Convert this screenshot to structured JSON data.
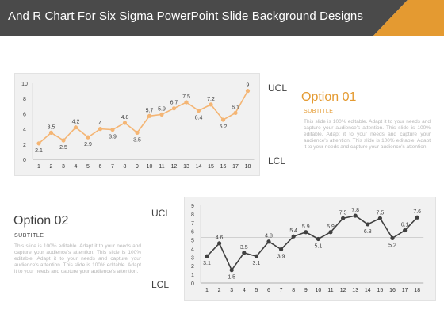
{
  "header": {
    "title": "And R Chart For Six Sigma PowerPoint Slide Background Designs",
    "background_color": "#4a4a4a",
    "accent_color": "#e49a31"
  },
  "chart_data": [
    {
      "type": "line",
      "x": [
        1,
        2,
        3,
        4,
        5,
        6,
        7,
        8,
        9,
        10,
        11,
        12,
        13,
        14,
        15,
        16,
        17,
        18
      ],
      "series": [
        {
          "values": [
            2.1,
            3.5,
            2.5,
            4.2,
            2.9,
            4,
            3.9,
            4.8,
            3.5,
            5.7,
            5.9,
            6.7,
            7.5,
            6.4,
            7.2,
            5.2,
            6.1,
            9
          ],
          "color": "#f4b574"
        }
      ],
      "ylim": [
        0,
        10
      ],
      "yticks": [
        0,
        2,
        4,
        6,
        8,
        10
      ],
      "ucl_label": "UCL",
      "lcl_label": "LCL",
      "grid": false,
      "center_line": true
    },
    {
      "type": "line",
      "x": [
        1,
        2,
        3,
        4,
        5,
        6,
        7,
        8,
        9,
        10,
        11,
        12,
        13,
        14,
        15,
        16,
        17,
        18
      ],
      "series": [
        {
          "values": [
            3.1,
            4.6,
            1.5,
            3.5,
            3.1,
            4.8,
            3.9,
            5.4,
            5.9,
            5.1,
            5.9,
            7.5,
            7.8,
            6.8,
            7.5,
            5.2,
            6.1,
            7.6
          ],
          "color": "#404040"
        }
      ],
      "ylim": [
        0,
        9
      ],
      "yticks": [
        0,
        1,
        2,
        3,
        4,
        5,
        6,
        7,
        8,
        9
      ],
      "ucl_label": "UCL",
      "lcl_label": "LCL",
      "grid": false,
      "center_line": true
    }
  ],
  "option1": {
    "title": "Option  01",
    "subtitle": "SUBTITLE",
    "body": "This slide is 100% editable. Adapt it to your needs and capture your audience's attention. This slide is 100% editable. Adapt it to your needs and capture your audience's attention. This slide is 100% editable. Adapt it to your needs and capture your audience's attention."
  },
  "option2": {
    "title": "Option  02",
    "subtitle": "SUBTITLE",
    "body": "This slide is 100% editable. Adapt it to your needs and capture your audience's attention. This slide is 100% editable. Adapt it to your needs and capture your audience's attention. This slide is 100% editable. Adapt it to your needs and capture your audience's attention."
  }
}
